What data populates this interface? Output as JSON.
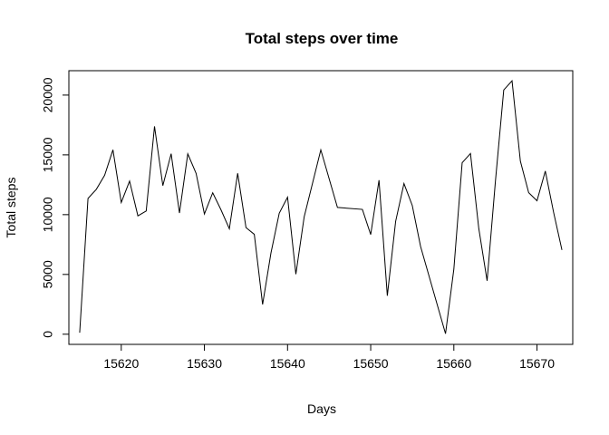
{
  "chart_data": {
    "type": "line",
    "title": "Total steps over time",
    "xlabel": "Days",
    "ylabel": "Total steps",
    "xlim": [
      15613.7,
      15674.3
    ],
    "ylim": [
      -850,
      22040
    ],
    "xticks": [
      15620,
      15630,
      15640,
      15650,
      15660,
      15670
    ],
    "yticks": [
      0,
      5000,
      10000,
      15000,
      20000
    ],
    "grid": false,
    "series": [
      {
        "x": [
          15615,
          15616,
          15617,
          15618,
          15619,
          15620,
          15621,
          15622,
          15623,
          15624,
          15625,
          15626,
          15627,
          15628,
          15629,
          15630,
          15631,
          15632,
          15633,
          15634,
          15635,
          15636,
          15637,
          15638,
          15639,
          15640,
          15641,
          15642,
          15644,
          15646,
          15649,
          15650,
          15651,
          15652,
          15653,
          15654,
          15655,
          15656,
          15659,
          15660,
          15661,
          15662,
          15663,
          15664,
          15665,
          15666,
          15667,
          15668,
          15669,
          15670,
          15671,
          15672,
          15673
        ],
        "values": [
          126,
          11352,
          12116,
          13294,
          15420,
          11015,
          12811,
          9900,
          10304,
          17382,
          12426,
          15098,
          10139,
          15084,
          13452,
          10056,
          11829,
          10395,
          8821,
          13460,
          8918,
          8355,
          2492,
          6778,
          10119,
          11458,
          5018,
          9819,
          15414,
          10600,
          10439,
          8334,
          12883,
          3219,
          9434,
          12600,
          10765,
          7336,
          41,
          5441,
          14339,
          15110,
          8841,
          4472,
          12787,
          20427,
          21194,
          14478,
          11834,
          11162,
          13646,
          10183,
          7047
        ]
      }
    ]
  }
}
